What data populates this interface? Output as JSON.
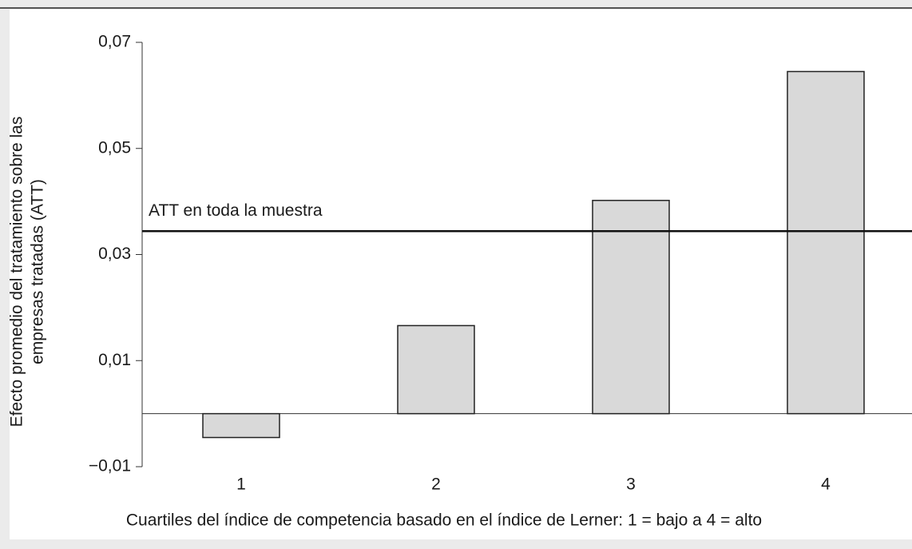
{
  "chart_data": {
    "type": "bar",
    "ylabel": [
      "Efecto promedio del tratamiento sobre las",
      "empresas tratadas (ATT)"
    ],
    "xlabel": "Cuartiles del índice de competencia basado en el índice de Lerner: 1 = bajo a 4 = alto",
    "categories": [
      "1",
      "2",
      "3",
      "4"
    ],
    "values": [
      -0.0045,
      0.0166,
      0.0402,
      0.0645
    ],
    "color": "#d9d9d9",
    "ylim": [
      -0.01,
      0.07
    ],
    "yticks": [
      {
        "value": 0.07,
        "label": "0,07"
      },
      {
        "value": 0.05,
        "label": "0,05"
      },
      {
        "value": 0.03,
        "label": "0,03"
      },
      {
        "value": 0.01,
        "label": "0,01"
      },
      {
        "value": -0.01,
        "label": "−0,01"
      }
    ],
    "reference_line": {
      "label": "ATT en toda la muestra",
      "value": 0.0344
    }
  }
}
